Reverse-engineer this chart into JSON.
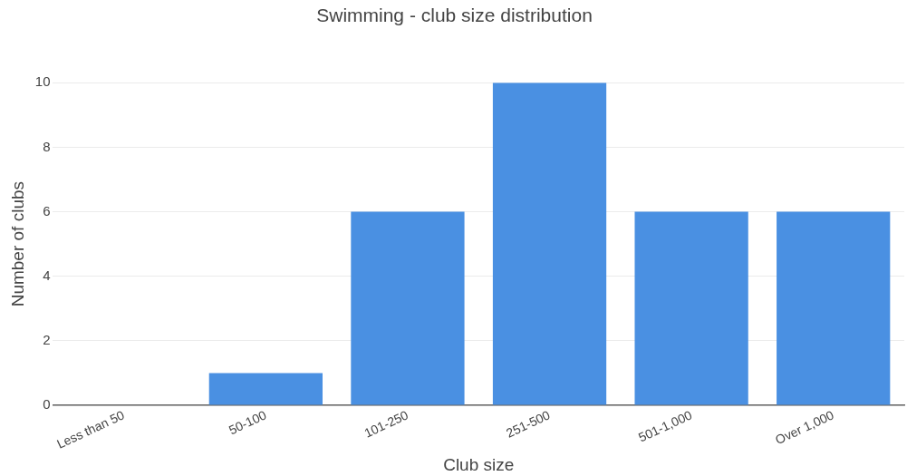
{
  "chart_data": {
    "type": "bar",
    "title": "Swimming - club size distribution",
    "xlabel": "Club size",
    "ylabel": "Number of clubs",
    "categories": [
      "Less than 50",
      "50-100",
      "101-250",
      "251-500",
      "501-1,000",
      "Over 1,000"
    ],
    "values": [
      0,
      1,
      6,
      10,
      6,
      6
    ],
    "color": "#4a90e2",
    "ylim": [
      0,
      10
    ],
    "yticks": [
      0,
      2,
      4,
      6,
      8,
      10
    ],
    "grid": "y",
    "legend": false
  }
}
